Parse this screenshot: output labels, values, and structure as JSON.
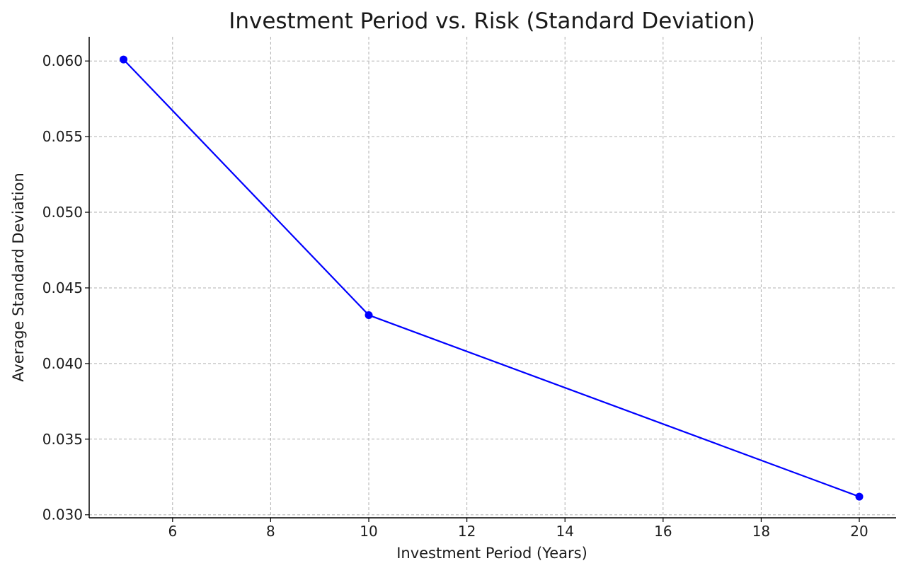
{
  "chart_data": {
    "type": "line",
    "title": "Investment Period vs. Risk (Standard Deviation)",
    "xlabel": "Investment Period (Years)",
    "ylabel": "Average Standard Deviation",
    "xlim": [
      4.3,
      20.75
    ],
    "ylim": [
      0.0298,
      0.0616
    ],
    "x_ticks": [
      6,
      8,
      10,
      12,
      14,
      16,
      18,
      20
    ],
    "x_tick_labels": [
      "6",
      "8",
      "10",
      "12",
      "14",
      "16",
      "18",
      "20"
    ],
    "y_ticks": [
      0.03,
      0.035,
      0.04,
      0.045,
      0.05,
      0.055,
      0.06
    ],
    "y_tick_labels": [
      "0.030",
      "0.035",
      "0.040",
      "0.045",
      "0.050",
      "0.055",
      "0.060"
    ],
    "grid": true,
    "series": [
      {
        "color": "#0000ff",
        "marker": "circle",
        "x": [
          5,
          10,
          20
        ],
        "y": [
          0.0601,
          0.0432,
          0.0312
        ]
      }
    ]
  }
}
